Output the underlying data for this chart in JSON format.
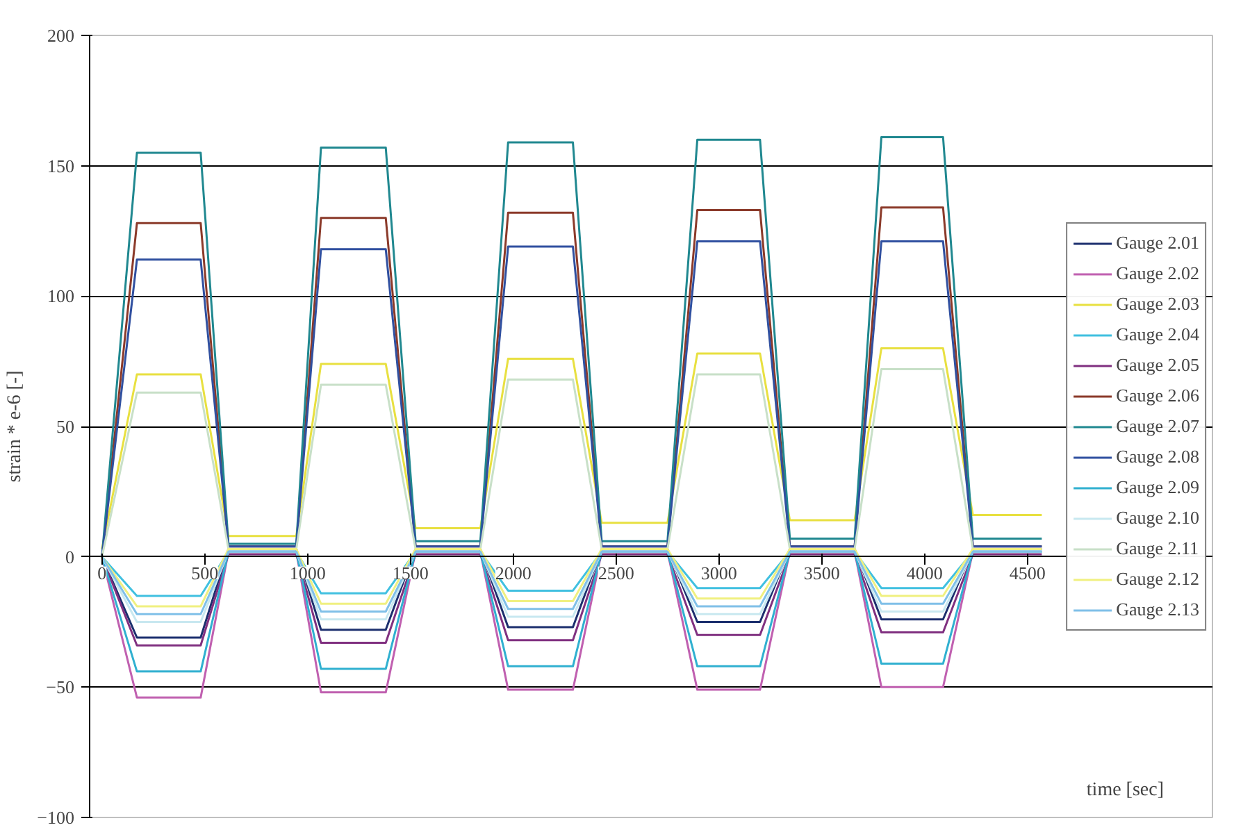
{
  "chart_data": {
    "type": "line",
    "xlabel": "time [sec]",
    "ylabel": "strain * e-6 [-]",
    "x": [
      0,
      170,
      480,
      615,
      945,
      1065,
      1380,
      1525,
      1840,
      1975,
      2290,
      2430,
      2750,
      2895,
      3200,
      3345,
      3660,
      3790,
      4090,
      4235,
      4570
    ],
    "xlim": [
      -60,
      5400
    ],
    "xticks": [
      0,
      500,
      1000,
      1500,
      2000,
      2500,
      3000,
      3500,
      4000,
      4500
    ],
    "ylim": [
      -100,
      200
    ],
    "yticks": [
      -100,
      -50,
      0,
      50,
      100,
      150,
      200
    ],
    "grid": "y",
    "legend": "right",
    "marker": "none",
    "line_style": "solid",
    "series": [
      {
        "name": "Gauge 2.01",
        "color": "#1c2f6e",
        "values": [
          0,
          -31,
          -31,
          3,
          3,
          -28,
          -28,
          3,
          3,
          -27,
          -27,
          3,
          3,
          -25,
          -25,
          3,
          3,
          -24,
          -24,
          3,
          3
        ]
      },
      {
        "name": "Gauge 2.02",
        "color": "#c060b0",
        "values": [
          0,
          -54,
          -54,
          2,
          2,
          -52,
          -52,
          2,
          2,
          -51,
          -51,
          2,
          2,
          -51,
          -51,
          2,
          2,
          -50,
          -50,
          2,
          2
        ]
      },
      {
        "name": "Gauge 2.03",
        "color": "#e8e040",
        "values": [
          3,
          70,
          70,
          8,
          8,
          74,
          74,
          11,
          11,
          76,
          76,
          13,
          13,
          78,
          78,
          14,
          14,
          80,
          80,
          16,
          16
        ]
      },
      {
        "name": "Gauge 2.04",
        "color": "#40c0e0",
        "values": [
          0,
          -15,
          -15,
          2,
          2,
          -14,
          -14,
          2,
          2,
          -13,
          -13,
          2,
          2,
          -12,
          -12,
          2,
          2,
          -12,
          -12,
          2,
          2
        ]
      },
      {
        "name": "Gauge 2.05",
        "color": "#803080",
        "values": [
          0,
          -34,
          -34,
          1,
          1,
          -33,
          -33,
          1,
          1,
          -32,
          -32,
          1,
          1,
          -30,
          -30,
          1,
          1,
          -29,
          -29,
          1,
          1
        ]
      },
      {
        "name": "Gauge 2.06",
        "color": "#8b3a2a",
        "values": [
          0,
          128,
          128,
          4,
          4,
          130,
          130,
          4,
          4,
          132,
          132,
          4,
          4,
          133,
          133,
          4,
          4,
          134,
          134,
          4,
          4
        ]
      },
      {
        "name": "Gauge 2.07",
        "color": "#208890",
        "values": [
          0,
          155,
          155,
          5,
          5,
          157,
          157,
          6,
          6,
          159,
          159,
          6,
          6,
          160,
          160,
          7,
          7,
          161,
          161,
          7,
          7
        ]
      },
      {
        "name": "Gauge 2.08",
        "color": "#3050a0",
        "values": [
          0,
          114,
          114,
          4,
          4,
          118,
          118,
          4,
          4,
          119,
          119,
          4,
          4,
          121,
          121,
          4,
          4,
          121,
          121,
          4,
          4
        ]
      },
      {
        "name": "Gauge 2.09",
        "color": "#30b0d0",
        "values": [
          0,
          -44,
          -44,
          2,
          2,
          -43,
          -43,
          2,
          2,
          -42,
          -42,
          2,
          2,
          -42,
          -42,
          2,
          2,
          -41,
          -41,
          2,
          2
        ]
      },
      {
        "name": "Gauge 2.10",
        "color": "#c8e8f0",
        "values": [
          0,
          -25,
          -25,
          2,
          2,
          -24,
          -24,
          2,
          2,
          -23,
          -23,
          2,
          2,
          -22,
          -22,
          2,
          2,
          -21,
          -21,
          2,
          2
        ]
      },
      {
        "name": "Gauge 2.11",
        "color": "#c8e0c8",
        "values": [
          0,
          63,
          63,
          3,
          3,
          66,
          66,
          3,
          3,
          68,
          68,
          3,
          3,
          70,
          70,
          3,
          3,
          72,
          72,
          3,
          3
        ]
      },
      {
        "name": "Gauge 2.12",
        "color": "#f0f080",
        "values": [
          0,
          -19,
          -19,
          3,
          3,
          -18,
          -18,
          3,
          3,
          -17,
          -17,
          3,
          3,
          -16,
          -16,
          3,
          3,
          -15,
          -15,
          3,
          3
        ]
      },
      {
        "name": "Gauge 2.13",
        "color": "#80c0e8",
        "values": [
          0,
          -22,
          -22,
          2,
          2,
          -21,
          -21,
          2,
          2,
          -20,
          -20,
          2,
          2,
          -19,
          -19,
          2,
          2,
          -18,
          -18,
          2,
          2
        ]
      }
    ]
  }
}
